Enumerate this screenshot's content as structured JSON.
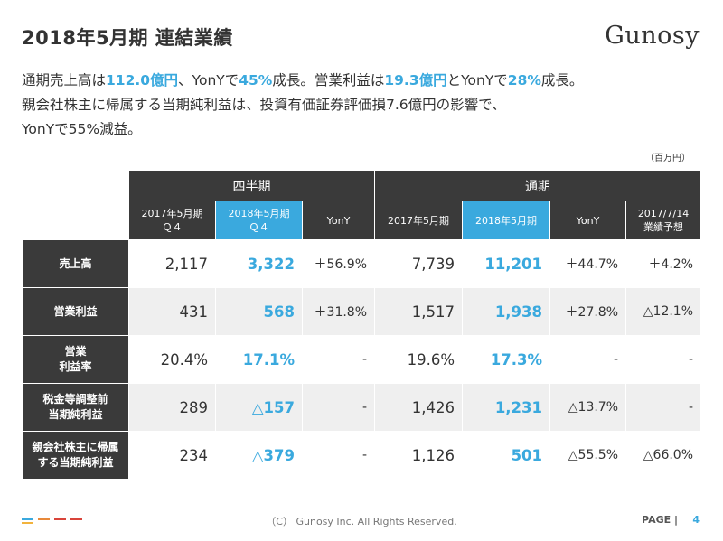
{
  "header": {
    "title": "2018年5月期 連結業績",
    "logo": "Gunosy"
  },
  "summary": {
    "line1": [
      {
        "text": "通期売上高は",
        "hl": false
      },
      {
        "text": "112.0億円",
        "hl": true
      },
      {
        "text": "、YonYで",
        "hl": false
      },
      {
        "text": "45%",
        "hl": true
      },
      {
        "text": "成長。営業利益は",
        "hl": false
      },
      {
        "text": "19.3億円",
        "hl": true
      },
      {
        "text": "とYonYで",
        "hl": false
      },
      {
        "text": "28%",
        "hl": true
      },
      {
        "text": "成長。",
        "hl": false
      }
    ],
    "line2": "親会社株主に帰属する当期純利益は、投資有価証券評価損7.6億円の影響で、",
    "line3": "YonYで55%減益。"
  },
  "unit_label": "（百万円）",
  "table": {
    "group_quarter": "四半期",
    "group_full": "通期",
    "col_q_prev": [
      "2017年5月期",
      "Ｑ４"
    ],
    "col_q_cur": [
      "2018年5月期",
      "Ｑ４"
    ],
    "col_q_yony": "YonY",
    "col_f_prev": "2017年5月期",
    "col_f_cur": "2018年5月期",
    "col_f_yony": "YonY",
    "col_f_forecast": [
      "2017/7/14",
      "業績予想"
    ],
    "rows": [
      {
        "label": [
          "売上高"
        ],
        "q_prev": "2,117",
        "q_cur": "3,322",
        "q_yony": "＋56.9%",
        "f_prev": "7,739",
        "f_cur": "11,201",
        "f_yony": "＋44.7%",
        "forecast": "＋4.2%"
      },
      {
        "label": [
          "営業利益"
        ],
        "q_prev": "431",
        "q_cur": "568",
        "q_yony": "＋31.8%",
        "f_prev": "1,517",
        "f_cur": "1,938",
        "f_yony": "＋27.8%",
        "forecast": "△12.1%"
      },
      {
        "label": [
          "営業",
          "利益率"
        ],
        "q_prev": "20.4%",
        "q_cur": "17.1%",
        "q_yony": "-",
        "f_prev": "19.6%",
        "f_cur": "17.3%",
        "f_yony": "-",
        "forecast": "-"
      },
      {
        "label": [
          "税金等調整前",
          "当期純利益"
        ],
        "q_prev": "289",
        "q_cur": "△157",
        "q_yony": "-",
        "f_prev": "1,426",
        "f_cur": "1,231",
        "f_yony": "△13.7%",
        "forecast": "-"
      },
      {
        "label": [
          "親会社株主に帰属",
          "する当期純利益"
        ],
        "q_prev": "234",
        "q_cur": "△379",
        "q_yony": "-",
        "f_prev": "1,126",
        "f_cur": "501",
        "f_yony": "△55.5%",
        "forecast": "△66.0%"
      }
    ]
  },
  "footer": {
    "copyright": "（C） Gunosy Inc. All Rights Reserved.",
    "page_label": "PAGE |",
    "page_number": "4",
    "line_colors": [
      "#3aa9de",
      "#f2b33d",
      "#e8893a",
      "#d9443a",
      "#d9443a"
    ]
  }
}
